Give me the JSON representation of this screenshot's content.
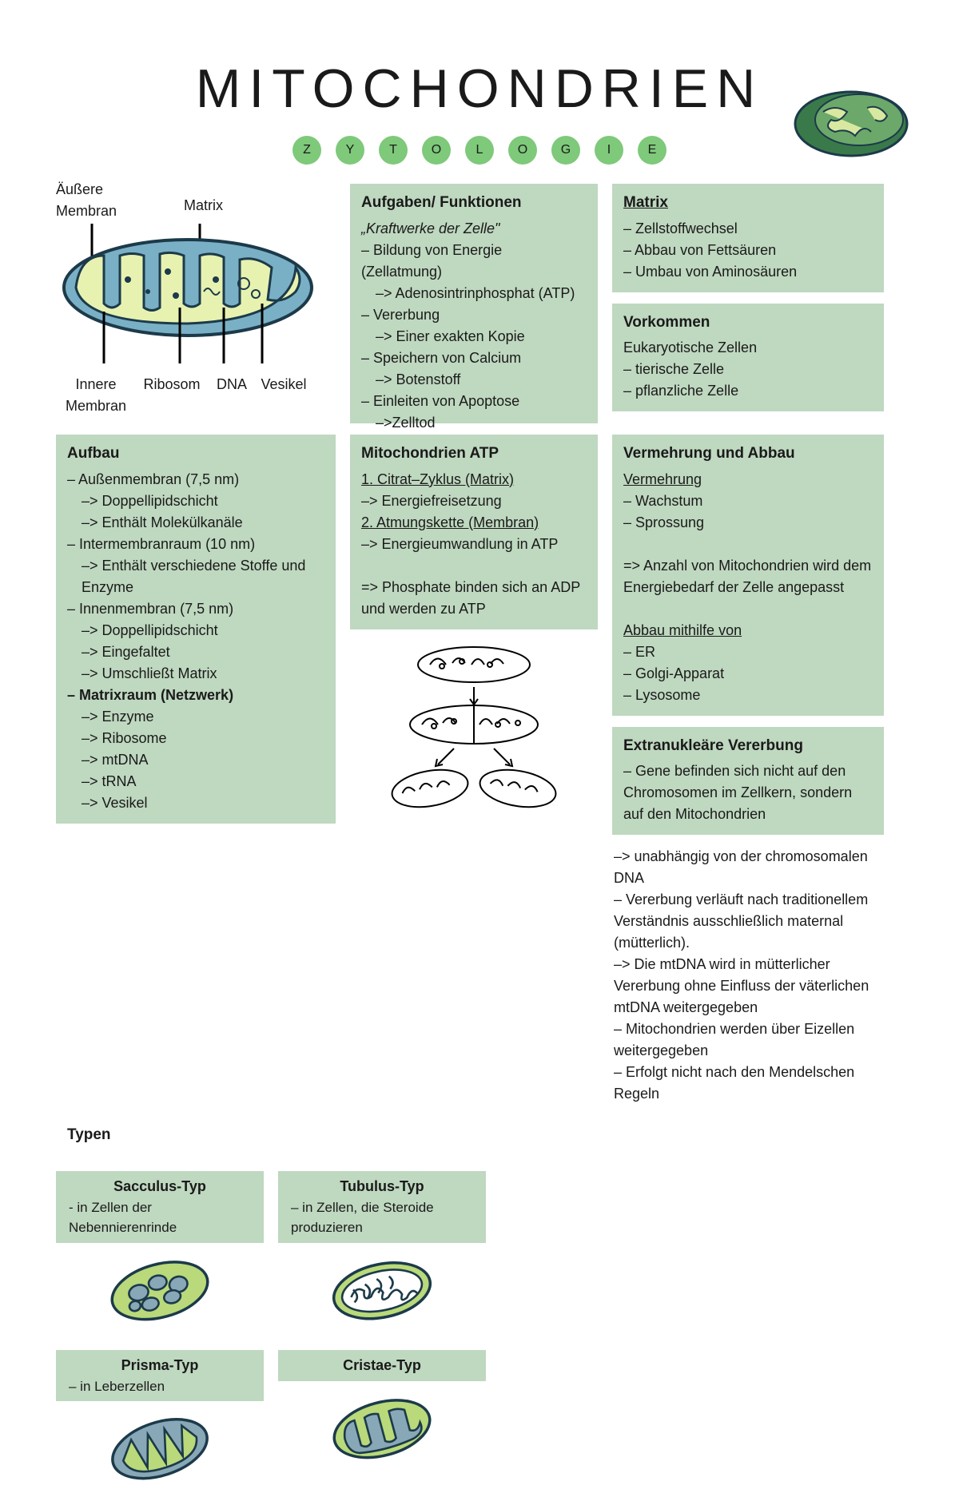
{
  "colors": {
    "box_bg": "#bfd8c0",
    "pill_bg": "#7ec97a",
    "mito_outer": "#7ab0c5",
    "mito_inner": "#e8f2b0",
    "mito_stroke": "#1c3a4a",
    "type_green": "#b9d97a",
    "type_blue": "#88a8b8"
  },
  "title": "MITOCHONDRIEN",
  "subtitle_letters": [
    "Z",
    "Y",
    "T",
    "O",
    "L",
    "O",
    "G",
    "I",
    "E"
  ],
  "diagram_labels": {
    "top_left": "Äußere\nMembran",
    "top_right": "Matrix",
    "bottom": [
      "Innere\nMembran",
      "Ribosom",
      "DNA",
      "Vesikel"
    ]
  },
  "boxes": {
    "aufgaben": {
      "title": "Aufgaben/ Funktionen",
      "lines": [
        {
          "t": "„Kraftwerke der Zelle\"",
          "i": 0,
          "em": true
        },
        {
          "t": "– Bildung von Energie (Zellatmung)",
          "i": 0
        },
        {
          "t": "–> Adenosintrinphosphat (ATP)",
          "i": 1
        },
        {
          "t": "– Vererbung",
          "i": 0
        },
        {
          "t": "–> Einer exakten Kopie",
          "i": 1
        },
        {
          "t": "– Speichern von Calcium",
          "i": 0
        },
        {
          "t": "–> Botenstoff",
          "i": 1
        },
        {
          "t": "– Einleiten von Apoptose",
          "i": 0
        },
        {
          "t": "–>Zelltod",
          "i": 1
        }
      ]
    },
    "matrix": {
      "title": "Matrix",
      "title_underline": true,
      "lines": [
        {
          "t": "– Zellstoffwechsel",
          "i": 0
        },
        {
          "t": "– Abbau von Fettsäuren",
          "i": 0
        },
        {
          "t": "– Umbau von Aminosäuren",
          "i": 0
        }
      ]
    },
    "vorkommen": {
      "title": "Vorkommen",
      "lines": [
        {
          "t": "Eukaryotische Zellen",
          "i": 0
        },
        {
          "t": "– tierische Zelle",
          "i": 0
        },
        {
          "t": "– pflanzliche Zelle",
          "i": 0
        }
      ]
    },
    "aufbau": {
      "title": "Aufbau",
      "lines": [
        {
          "t": "– Außenmembran (7,5 nm)",
          "i": 0
        },
        {
          "t": "–> Doppellipidschicht",
          "i": 1
        },
        {
          "t": "–> Enthält Molekülkanäle",
          "i": 1
        },
        {
          "t": "– Intermembranraum (10 nm)",
          "i": 0
        },
        {
          "t": "–> Enthält verschiedene Stoffe und Enzyme",
          "i": 1
        },
        {
          "t": "– Innenmembran (7,5 nm)",
          "i": 0
        },
        {
          "t": "–> Doppellipidschicht",
          "i": 1
        },
        {
          "t": "–> Eingefaltet",
          "i": 1
        },
        {
          "t": "–> Umschließt Matrix",
          "i": 1
        },
        {
          "t": "– Matrixraum (Netzwerk)",
          "i": 0,
          "bold": true
        },
        {
          "t": "–> Enzyme",
          "i": 1
        },
        {
          "t": "–> Ribosome",
          "i": 1
        },
        {
          "t": "–> mtDNA",
          "i": 1
        },
        {
          "t": "–> tRNA",
          "i": 1
        },
        {
          "t": "–> Vesikel",
          "i": 1
        }
      ]
    },
    "atp": {
      "title": "Mitochondrien ATP",
      "lines": [
        {
          "t": "1. Citrat–Zyklus (Matrix)",
          "i": 0,
          "u": true
        },
        {
          "t": "–> Energiefreisetzung",
          "i": 0
        },
        {
          "t": "2. Atmungskette (Membran)",
          "i": 0,
          "u": true
        },
        {
          "t": "–> Energieumwandlung in ATP",
          "i": 0
        },
        {
          "t": "",
          "i": 0
        },
        {
          "t": "=> Phosphate binden sich an ADP und werden zu ATP",
          "i": 0
        }
      ]
    },
    "vermehrung": {
      "title": "Vermehrung und Abbau",
      "lines": [
        {
          "t": "Vermehrung",
          "i": 0,
          "u": true
        },
        {
          "t": "– Wachstum",
          "i": 0
        },
        {
          "t": "– Sprossung",
          "i": 0
        },
        {
          "t": "",
          "i": 0
        },
        {
          "t": "=> Anzahl von Mitochondrien wird dem Energiebedarf der Zelle angepasst",
          "i": 0
        },
        {
          "t": "",
          "i": 0
        },
        {
          "t": "Abbau mithilfe von",
          "i": 0,
          "u": true
        },
        {
          "t": "– ER",
          "i": 0
        },
        {
          "t": "– Golgi-Apparat",
          "i": 0
        },
        {
          "t": "– Lysosome",
          "i": 0
        }
      ]
    },
    "extra": {
      "title": "Extranukleäre Vererbung",
      "lines": [
        {
          "t": "– Gene befinden sich nicht auf den Chromosomen im Zellkern, sondern auf den Mitochondrien",
          "i": 0
        }
      ]
    },
    "extra_plain": {
      "lines": [
        {
          "t": "–> unabhängig von der chromosomalen DNA",
          "i": 0
        },
        {
          "t": "– Vererbung verläuft nach traditionellem Verständnis ausschließlich maternal (mütterlich).",
          "i": 0
        },
        {
          "t": "–>  Die mtDNA wird in mütterlicher Vererbung ohne Einfluss der väterlichen mtDNA weitergegeben",
          "i": 0
        },
        {
          "t": "– Mitochondrien werden über Eizellen weitergegeben",
          "i": 0
        },
        {
          "t": "– Erfolgt nicht nach den Mendelschen Regeln",
          "i": 0
        }
      ]
    },
    "typen_label": "Typen"
  },
  "types": [
    {
      "name": "Sacculus-Typ",
      "desc": "- in Zellen der Nebennierenrinde"
    },
    {
      "name": "Tubulus-Typ",
      "desc": "– in Zellen, die Steroide produzieren"
    },
    {
      "name": "Prisma-Typ",
      "desc": "– in Leberzellen"
    },
    {
      "name": "Cristae-Typ",
      "desc": ""
    }
  ]
}
